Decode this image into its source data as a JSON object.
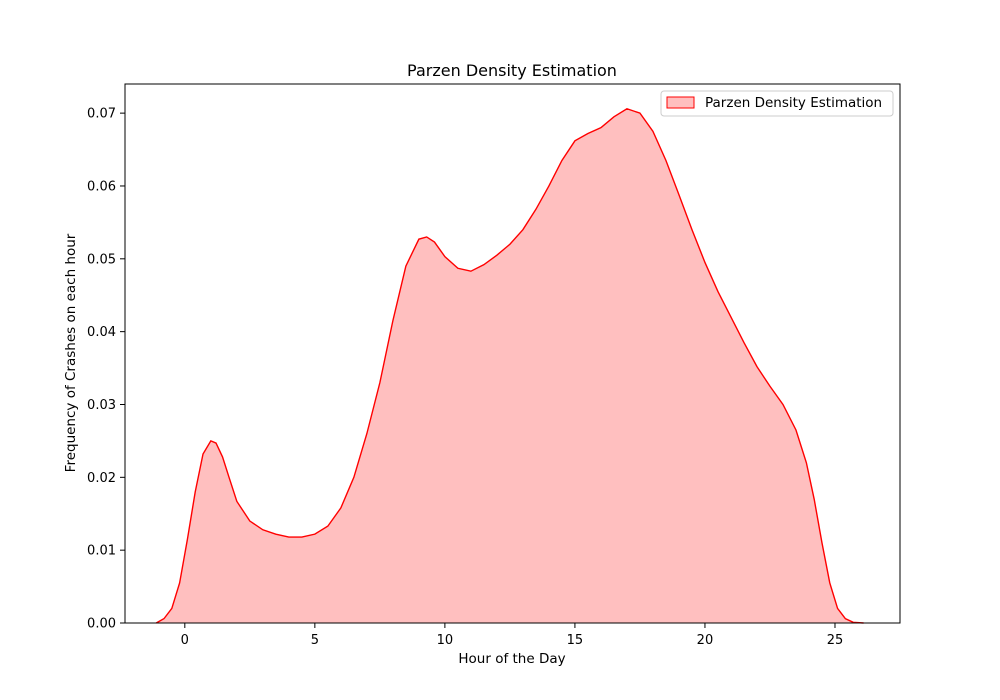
{
  "chart_data": {
    "type": "area",
    "title": "Parzen Density Estimation",
    "xlabel": "Hour of the Day",
    "ylabel": "Frequency of Crashes on each hour",
    "xlim": [
      -2.3,
      27.5
    ],
    "ylim": [
      0,
      0.074
    ],
    "xticks": [
      0,
      5,
      10,
      15,
      20,
      25
    ],
    "xtick_labels": [
      "0",
      "5",
      "10",
      "15",
      "20",
      "25"
    ],
    "yticks": [
      0,
      0.01,
      0.02,
      0.03,
      0.04,
      0.05,
      0.06,
      0.07
    ],
    "ytick_labels": [
      "0.00",
      "0.01",
      "0.02",
      "0.03",
      "0.04",
      "0.05",
      "0.06",
      "0.07"
    ],
    "grid": false,
    "legend": {
      "position": "top-right",
      "entries": [
        "Parzen Density Estimation"
      ]
    },
    "series": [
      {
        "name": "Parzen Density Estimation",
        "color": "#ff0000",
        "fill_color": "#ffbfbf",
        "x": [
          -1.1,
          -0.8,
          -0.5,
          -0.2,
          0.1,
          0.4,
          0.7,
          1.0,
          1.2,
          1.45,
          1.7,
          2.0,
          2.5,
          3.0,
          3.5,
          4.0,
          4.5,
          5.0,
          5.5,
          6.0,
          6.5,
          7.0,
          7.5,
          8.0,
          8.5,
          9.0,
          9.3,
          9.6,
          10.0,
          10.5,
          11.0,
          11.5,
          12.0,
          12.5,
          13.0,
          13.5,
          14.0,
          14.5,
          15.0,
          15.5,
          16.0,
          16.5,
          17.0,
          17.5,
          18.0,
          18.5,
          19.0,
          19.5,
          20.0,
          20.5,
          21.0,
          21.5,
          22.0,
          22.5,
          23.0,
          23.5,
          23.9,
          24.2,
          24.5,
          24.8,
          25.1,
          25.4,
          25.7,
          26.1
        ],
        "y": [
          0.0,
          0.0006,
          0.002,
          0.0055,
          0.0115,
          0.018,
          0.0232,
          0.025,
          0.0247,
          0.0228,
          0.02,
          0.0167,
          0.014,
          0.0128,
          0.0122,
          0.0118,
          0.0118,
          0.0122,
          0.0133,
          0.0158,
          0.02,
          0.026,
          0.033,
          0.0415,
          0.049,
          0.0527,
          0.053,
          0.0523,
          0.0503,
          0.0487,
          0.0483,
          0.0492,
          0.0505,
          0.052,
          0.054,
          0.0568,
          0.06,
          0.0635,
          0.0662,
          0.0672,
          0.068,
          0.0695,
          0.0706,
          0.07,
          0.0675,
          0.0635,
          0.0588,
          0.054,
          0.0495,
          0.0455,
          0.042,
          0.0385,
          0.0352,
          0.0325,
          0.03,
          0.0265,
          0.022,
          0.017,
          0.011,
          0.0055,
          0.002,
          0.0006,
          0.0001,
          0.0
        ]
      }
    ]
  }
}
